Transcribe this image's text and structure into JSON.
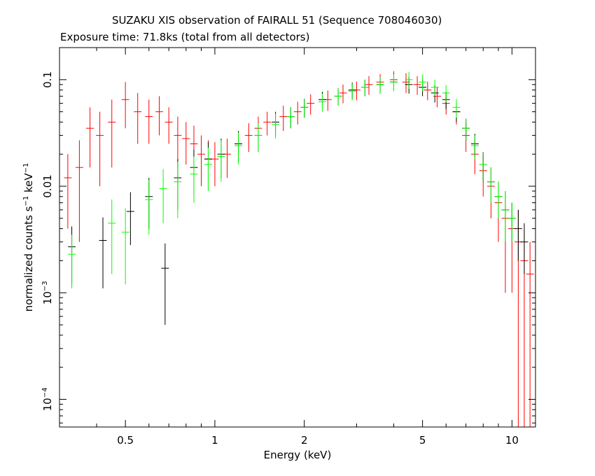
{
  "chart_data": {
    "type": "scatter",
    "title": "SUZAKU XIS observation of FAIRALL 51 (Sequence 708046030)",
    "subtitle": "Exposure time: 71.8ks (total from all detectors)",
    "xlabel": "Energy (keV)",
    "ylabel_main": "normalized counts s",
    "ylabel_exp1": "−1",
    "ylabel_mid": " keV",
    "ylabel_exp2": "−1",
    "x_scale": "log",
    "y_scale": "log",
    "xlim": [
      0.3,
      12
    ],
    "ylim": [
      5.5e-05,
      0.2
    ],
    "grid": false,
    "x_ticks": [
      {
        "label": "0.5",
        "value": 0.5
      },
      {
        "label": "1",
        "value": 1
      },
      {
        "label": "2",
        "value": 2
      },
      {
        "label": "5",
        "value": 5
      },
      {
        "label": "10",
        "value": 10
      }
    ],
    "y_ticks": [
      {
        "base": "10",
        "exp": "−4",
        "value": 0.0001
      },
      {
        "base": "10",
        "exp": "−3",
        "value": 0.001
      },
      {
        "base": "0.01",
        "exp": "",
        "value": 0.01
      },
      {
        "base": "0.1",
        "exp": "",
        "value": 0.1
      }
    ],
    "series": [
      {
        "color": "#ff0000",
        "points": [
          [
            0.32,
            0.012,
            0.008
          ],
          [
            0.35,
            0.015,
            0.012
          ],
          [
            0.38,
            0.035,
            0.02
          ],
          [
            0.41,
            0.03,
            0.02
          ],
          [
            0.45,
            0.04,
            0.025
          ],
          [
            0.5,
            0.065,
            0.03
          ],
          [
            0.55,
            0.05,
            0.025
          ],
          [
            0.6,
            0.045,
            0.02
          ],
          [
            0.65,
            0.05,
            0.02
          ],
          [
            0.7,
            0.04,
            0.015
          ],
          [
            0.75,
            0.03,
            0.015
          ],
          [
            0.8,
            0.028,
            0.012
          ],
          [
            0.85,
            0.025,
            0.012
          ],
          [
            0.9,
            0.02,
            0.01
          ],
          [
            0.95,
            0.018,
            0.009
          ],
          [
            1.0,
            0.018,
            0.008
          ],
          [
            1.1,
            0.02,
            0.008
          ],
          [
            1.2,
            0.025,
            0.008
          ],
          [
            1.3,
            0.03,
            0.009
          ],
          [
            1.4,
            0.035,
            0.01
          ],
          [
            1.5,
            0.04,
            0.01
          ],
          [
            1.7,
            0.045,
            0.012
          ],
          [
            1.9,
            0.05,
            0.012
          ],
          [
            2.1,
            0.06,
            0.013
          ],
          [
            2.4,
            0.065,
            0.014
          ],
          [
            2.7,
            0.075,
            0.015
          ],
          [
            3.0,
            0.08,
            0.016
          ],
          [
            3.3,
            0.09,
            0.018
          ],
          [
            3.6,
            0.095,
            0.018
          ],
          [
            4.0,
            0.1,
            0.02
          ],
          [
            4.4,
            0.095,
            0.02
          ],
          [
            4.8,
            0.09,
            0.018
          ],
          [
            5.2,
            0.08,
            0.016
          ],
          [
            5.6,
            0.07,
            0.015
          ],
          [
            6.0,
            0.06,
            0.013
          ],
          [
            6.5,
            0.05,
            0.012
          ],
          [
            7.0,
            0.03,
            0.009
          ],
          [
            7.5,
            0.02,
            0.007
          ],
          [
            8.0,
            0.014,
            0.006
          ],
          [
            8.5,
            0.01,
            0.005
          ],
          [
            9.0,
            0.007,
            0.004
          ],
          [
            9.5,
            0.005,
            0.004
          ],
          [
            10.0,
            0.004,
            0.003
          ],
          [
            10.5,
            0.003,
            0.003
          ],
          [
            11.0,
            0.002,
            0.002
          ],
          [
            11.5,
            0.0015,
            0.0015
          ]
        ]
      },
      {
        "color": "#000000",
        "points": [
          [
            0.33,
            0.0027,
            0.0015
          ],
          [
            0.42,
            0.0031,
            0.002
          ],
          [
            0.52,
            0.0058,
            0.003
          ],
          [
            0.6,
            0.008,
            0.004
          ],
          [
            0.68,
            0.0017,
            0.0012
          ],
          [
            0.75,
            0.012,
            0.006
          ],
          [
            0.85,
            0.015,
            0.007
          ],
          [
            0.95,
            0.018,
            0.008
          ],
          [
            1.05,
            0.02,
            0.008
          ],
          [
            1.2,
            0.025,
            0.008
          ],
          [
            1.4,
            0.03,
            0.009
          ],
          [
            1.6,
            0.04,
            0.01
          ],
          [
            1.8,
            0.045,
            0.01
          ],
          [
            2.0,
            0.055,
            0.011
          ],
          [
            2.3,
            0.065,
            0.012
          ],
          [
            2.6,
            0.07,
            0.013
          ],
          [
            2.9,
            0.08,
            0.014
          ],
          [
            3.2,
            0.085,
            0.015
          ],
          [
            3.6,
            0.09,
            0.016
          ],
          [
            4.0,
            0.095,
            0.017
          ],
          [
            4.5,
            0.09,
            0.016
          ],
          [
            5.0,
            0.085,
            0.015
          ],
          [
            5.5,
            0.075,
            0.014
          ],
          [
            6.0,
            0.065,
            0.012
          ],
          [
            6.5,
            0.05,
            0.01
          ],
          [
            7.0,
            0.035,
            0.008
          ],
          [
            7.5,
            0.025,
            0.006
          ],
          [
            8.0,
            0.016,
            0.005
          ],
          [
            8.5,
            0.011,
            0.004
          ],
          [
            9.0,
            0.008,
            0.003
          ],
          [
            9.5,
            0.006,
            0.003
          ],
          [
            10.0,
            0.005,
            0.002
          ],
          [
            10.5,
            0.004,
            0.002
          ],
          [
            11.0,
            0.003,
            0.0015
          ]
        ]
      },
      {
        "color": "#00ff00",
        "points": [
          [
            0.33,
            0.0023,
            0.0012
          ],
          [
            0.45,
            0.0045,
            0.003
          ],
          [
            0.5,
            0.0037,
            0.0025
          ],
          [
            0.6,
            0.0075,
            0.004
          ],
          [
            0.67,
            0.0095,
            0.005
          ],
          [
            0.75,
            0.011,
            0.006
          ],
          [
            0.85,
            0.013,
            0.006
          ],
          [
            0.95,
            0.016,
            0.007
          ],
          [
            1.05,
            0.019,
            0.008
          ],
          [
            1.2,
            0.024,
            0.008
          ],
          [
            1.4,
            0.03,
            0.009
          ],
          [
            1.6,
            0.038,
            0.01
          ],
          [
            1.8,
            0.045,
            0.01
          ],
          [
            2.0,
            0.055,
            0.011
          ],
          [
            2.3,
            0.062,
            0.012
          ],
          [
            2.6,
            0.07,
            0.013
          ],
          [
            2.9,
            0.078,
            0.014
          ],
          [
            3.2,
            0.085,
            0.015
          ],
          [
            3.6,
            0.09,
            0.016
          ],
          [
            4.0,
            0.095,
            0.017
          ],
          [
            4.5,
            0.1,
            0.018
          ],
          [
            5.0,
            0.095,
            0.017
          ],
          [
            5.5,
            0.085,
            0.015
          ],
          [
            6.0,
            0.075,
            0.014
          ],
          [
            6.5,
            0.055,
            0.011
          ],
          [
            7.0,
            0.035,
            0.008
          ],
          [
            7.5,
            0.024,
            0.006
          ],
          [
            8.0,
            0.016,
            0.005
          ],
          [
            8.5,
            0.011,
            0.004
          ],
          [
            9.0,
            0.008,
            0.003
          ],
          [
            9.5,
            0.006,
            0.003
          ],
          [
            10.0,
            0.005,
            0.002
          ]
        ]
      }
    ]
  }
}
